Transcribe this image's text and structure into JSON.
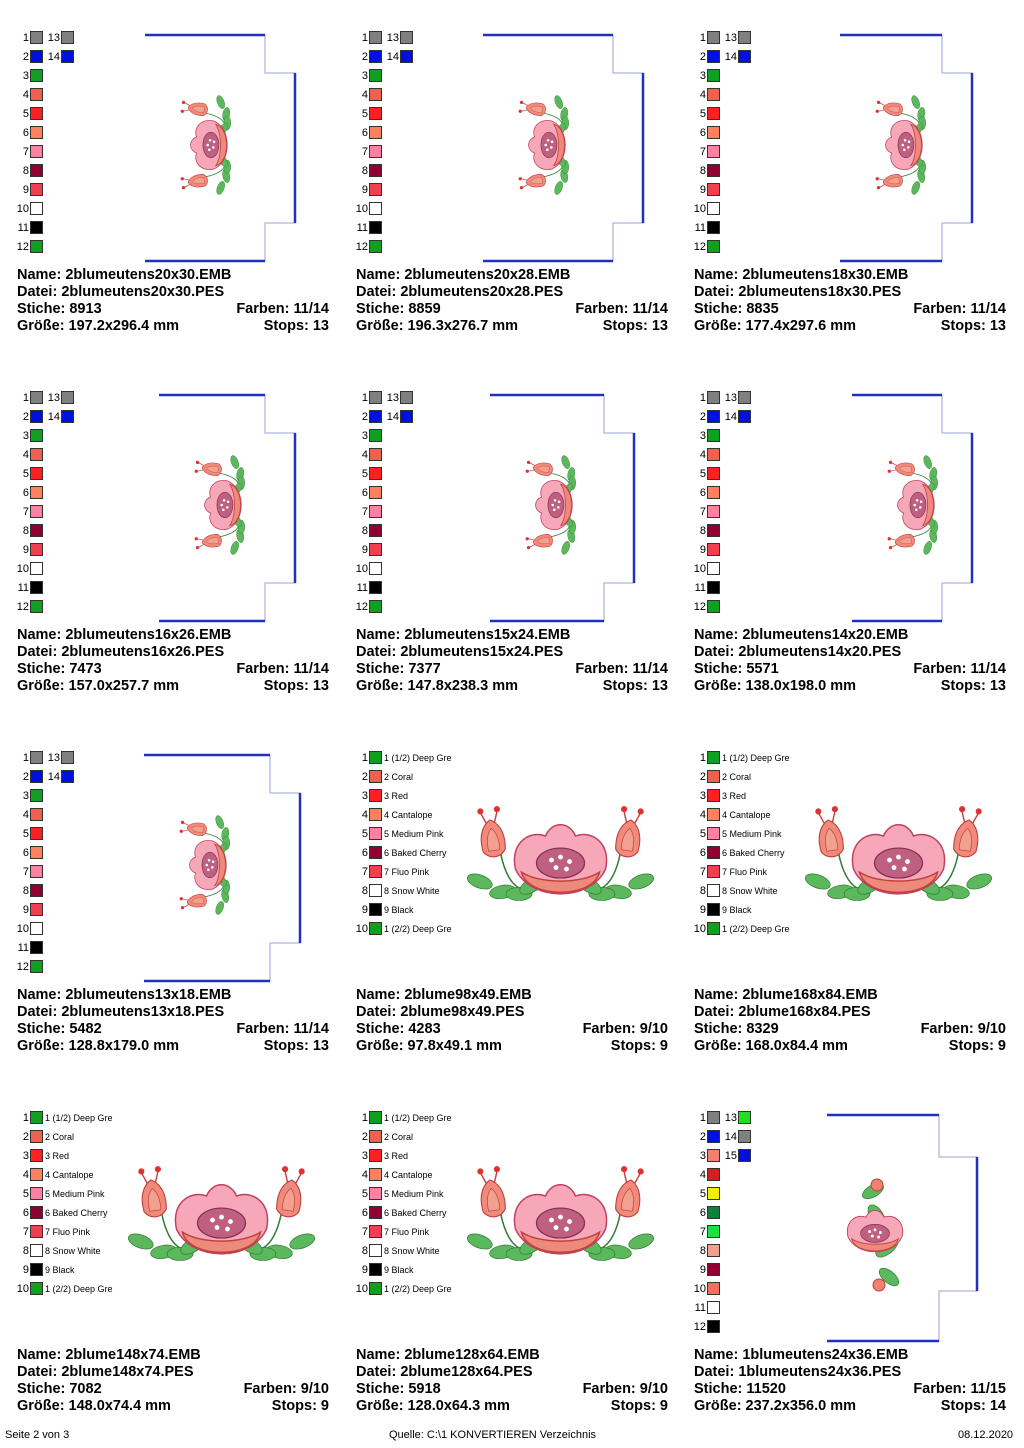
{
  "labels": {
    "name": "Name:",
    "file": "Datei:",
    "stitches": "Stiche:",
    "colors": "Farben:",
    "size": "Größe:",
    "stops": "Stops:"
  },
  "footer": {
    "page": "Seite 2 von 3",
    "source": "Quelle: C:\\1 KONVERTIEREN Verzeichnis",
    "date": "08.12.2020"
  },
  "palettes": {
    "frameA": [
      {
        "n": "1",
        "c": "#808080",
        "n2": "13",
        "c2": "#808080"
      },
      {
        "n": "2",
        "c": "#0010e0",
        "n2": "14",
        "c2": "#0010e0"
      },
      {
        "n": "3",
        "c": "#10a020"
      },
      {
        "n": "4",
        "c": "#f06050"
      },
      {
        "n": "5",
        "c": "#ff2020"
      },
      {
        "n": "6",
        "c": "#ff8060"
      },
      {
        "n": "7",
        "c": "#ff80a0"
      },
      {
        "n": "8",
        "c": "#900030"
      },
      {
        "n": "9",
        "c": "#f04050"
      },
      {
        "n": "10",
        "c": "#ffffff"
      },
      {
        "n": "11",
        "c": "#000000"
      },
      {
        "n": "12",
        "c": "#10a020"
      }
    ],
    "flower": [
      {
        "n": "1",
        "c": "#10a020",
        "name": "1 (1/2) Deep Gre"
      },
      {
        "n": "2",
        "c": "#f06050",
        "name": "2 Coral"
      },
      {
        "n": "3",
        "c": "#ff2020",
        "name": "3 Red"
      },
      {
        "n": "4",
        "c": "#ff8060",
        "name": "4 Cantalope"
      },
      {
        "n": "5",
        "c": "#ff80a0",
        "name": "5 Medium Pink"
      },
      {
        "n": "6",
        "c": "#900030",
        "name": "6 Baked Cherry"
      },
      {
        "n": "7",
        "c": "#f04050",
        "name": "7 Fluo Pink"
      },
      {
        "n": "8",
        "c": "#ffffff",
        "name": "8 Snow White"
      },
      {
        "n": "9",
        "c": "#000000",
        "name": "9 Black"
      },
      {
        "n": "10",
        "c": "#10a020",
        "name": "1 (2/2) Deep Gre"
      }
    ],
    "frameB": [
      {
        "n": "1",
        "c": "#808080",
        "n2": "13",
        "c2": "#20e020"
      },
      {
        "n": "2",
        "c": "#0010e0",
        "n2": "14",
        "c2": "#808080"
      },
      {
        "n": "3",
        "c": "#f08070",
        "n2": "15",
        "c2": "#0010e0"
      },
      {
        "n": "4",
        "c": "#d02020"
      },
      {
        "n": "5",
        "c": "#f0f000"
      },
      {
        "n": "6",
        "c": "#108040"
      },
      {
        "n": "7",
        "c": "#20e040"
      },
      {
        "n": "8",
        "c": "#f0a090"
      },
      {
        "n": "9",
        "c": "#900030"
      },
      {
        "n": "10",
        "c": "#f07060"
      },
      {
        "n": "11",
        "c": "#ffffff"
      },
      {
        "n": "12",
        "c": "#000000"
      }
    ]
  },
  "designs": [
    {
      "type": "frame",
      "palette": "frameA",
      "name": "2blumeutens20x30.EMB",
      "file": "2blumeutens20x30.PES",
      "stitches": "8913",
      "colors": "11/14",
      "size": "197.2x296.4 mm",
      "stops": "13"
    },
    {
      "type": "frame",
      "palette": "frameA",
      "name": "2blumeutens20x28.EMB",
      "file": "2blumeutens20x28.PES",
      "stitches": "8859",
      "colors": "11/14",
      "size": "196.3x276.7 mm",
      "stops": "13"
    },
    {
      "type": "frame",
      "palette": "frameA",
      "name": "2blumeutens18x30.EMB",
      "file": "2blumeutens18x30.PES",
      "stitches": "8835",
      "colors": "11/14",
      "size": "177.4x297.6 mm",
      "stops": "13"
    },
    {
      "type": "frame",
      "palette": "frameA",
      "name": "2blumeutens16x26.EMB",
      "file": "2blumeutens16x26.PES",
      "stitches": "7473",
      "colors": "11/14",
      "size": "157.0x257.7 mm",
      "stops": "13"
    },
    {
      "type": "frame",
      "palette": "frameA",
      "name": "2blumeutens15x24.EMB",
      "file": "2blumeutens15x24.PES",
      "stitches": "7377",
      "colors": "11/14",
      "size": "147.8x238.3 mm",
      "stops": "13"
    },
    {
      "type": "frame",
      "palette": "frameA",
      "name": "2blumeutens14x20.EMB",
      "file": "2blumeutens14x20.PES",
      "stitches": "5571",
      "colors": "11/14",
      "size": "138.0x198.0 mm",
      "stops": "13"
    },
    {
      "type": "frame",
      "palette": "frameA",
      "name": "2blumeutens13x18.EMB",
      "file": "2blumeutens13x18.PES",
      "stitches": "5482",
      "colors": "11/14",
      "size": "128.8x179.0 mm",
      "stops": "13"
    },
    {
      "type": "flower",
      "palette": "flower",
      "name": "2blume98x49.EMB",
      "file": "2blume98x49.PES",
      "stitches": "4283",
      "colors": "9/10",
      "size": "97.8x49.1 mm",
      "stops": "9"
    },
    {
      "type": "flower",
      "palette": "flower",
      "name": "2blume168x84.EMB",
      "file": "2blume168x84.PES",
      "stitches": "8329",
      "colors": "9/10",
      "size": "168.0x84.4 mm",
      "stops": "9"
    },
    {
      "type": "flower",
      "palette": "flower",
      "name": "2blume148x74.EMB",
      "file": "2blume148x74.PES",
      "stitches": "7082",
      "colors": "9/10",
      "size": "148.0x74.4 mm",
      "stops": "9"
    },
    {
      "type": "flower",
      "palette": "flower",
      "name": "2blume128x64.EMB",
      "file": "2blume128x64.PES",
      "stitches": "5918",
      "colors": "9/10",
      "size": "128.0x64.3 mm",
      "stops": "9"
    },
    {
      "type": "frame2",
      "palette": "frameB",
      "name": "1blumeutens24x36.EMB",
      "file": "1blumeutens24x36.PES",
      "stitches": "11520",
      "colors": "11/15",
      "size": "237.2x356.0 mm",
      "stops": "14"
    }
  ]
}
